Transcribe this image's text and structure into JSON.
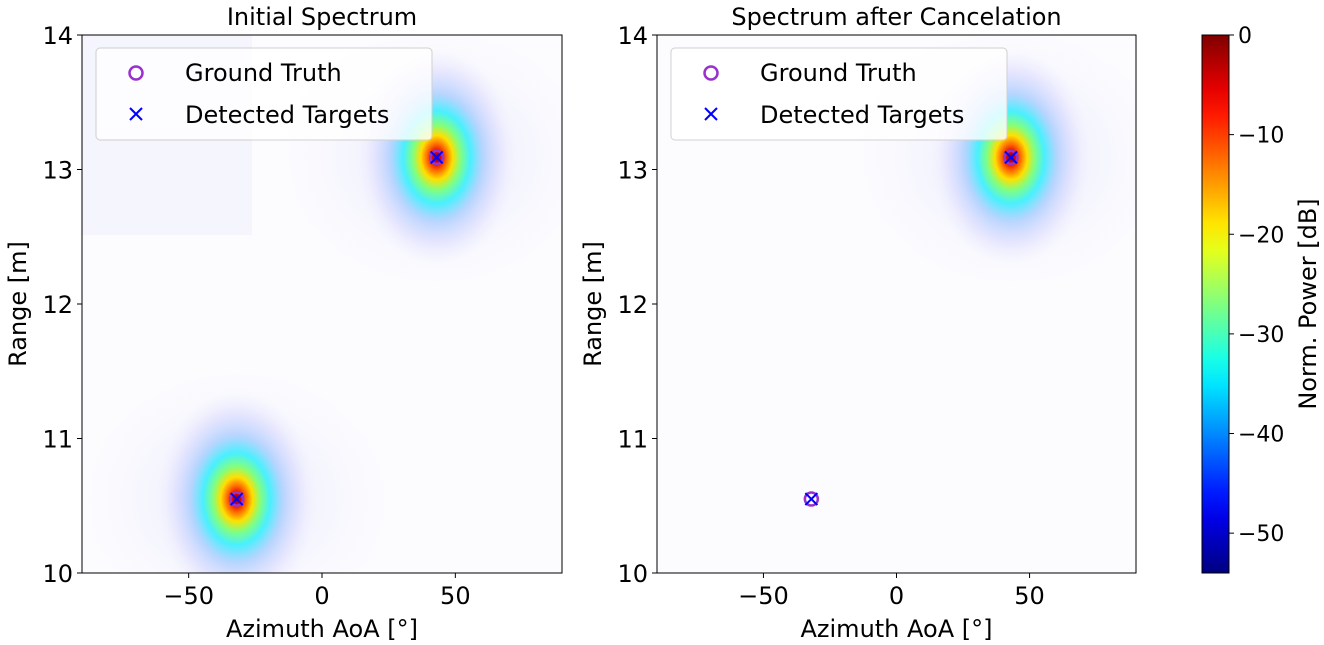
{
  "chart_data": {
    "type": "heatmap",
    "panels": [
      {
        "title": "Initial Spectrum",
        "xlabel": "Azimuth AoA [°]",
        "ylabel": "Range [m]",
        "xlim": [
          -90,
          90
        ],
        "ylim": [
          10,
          14
        ],
        "xticks": [
          -50,
          0,
          50
        ],
        "xtick_labels": [
          "−50",
          "0",
          "50"
        ],
        "yticks": [
          10,
          11,
          12,
          13,
          14
        ],
        "ytick_labels": [
          "10",
          "11",
          "12",
          "13",
          "14"
        ],
        "grid": false,
        "legend_position": "top-left",
        "peaks": [
          {
            "azimuth": 43,
            "range": 13.09,
            "peak_db": 0
          },
          {
            "azimuth": -32,
            "range": 10.55,
            "peak_db": 0
          }
        ],
        "ground_truth": [
          {
            "azimuth": 43,
            "range": 13.09
          },
          {
            "azimuth": -32,
            "range": 10.55
          }
        ],
        "detected_targets": [
          {
            "azimuth": 43,
            "range": 13.09
          },
          {
            "azimuth": -32,
            "range": 10.55
          }
        ]
      },
      {
        "title": "Spectrum after Cancelation",
        "xlabel": "Azimuth AoA [°]",
        "ylabel": "Range [m]",
        "xlim": [
          -90,
          90
        ],
        "ylim": [
          10,
          14
        ],
        "xticks": [
          -50,
          0,
          50
        ],
        "xtick_labels": [
          "−50",
          "0",
          "50"
        ],
        "yticks": [
          10,
          11,
          12,
          13,
          14
        ],
        "ytick_labels": [
          "10",
          "11",
          "12",
          "13",
          "14"
        ],
        "grid": false,
        "legend_position": "top-left",
        "peaks": [
          {
            "azimuth": 43,
            "range": 13.09,
            "peak_db": 0
          }
        ],
        "ground_truth": [
          {
            "azimuth": 43,
            "range": 13.09
          },
          {
            "azimuth": -32,
            "range": 10.55
          }
        ],
        "detected_targets": [
          {
            "azimuth": 43,
            "range": 13.09
          },
          {
            "azimuth": -32,
            "range": 10.55
          }
        ]
      }
    ],
    "legend": [
      "Ground Truth",
      "Detected Targets"
    ],
    "colorbar": {
      "label": "Norm. Power [dB]",
      "colormap": "jet",
      "range": [
        -54,
        0
      ],
      "ticks": [
        0,
        -10,
        -20,
        -30,
        -40,
        -50
      ],
      "tick_labels": [
        "0",
        "−10",
        "−20",
        "−30",
        "−40",
        "−50"
      ]
    },
    "colors": {
      "ground_truth": "#9932cc",
      "detected": "#0000ff"
    }
  }
}
